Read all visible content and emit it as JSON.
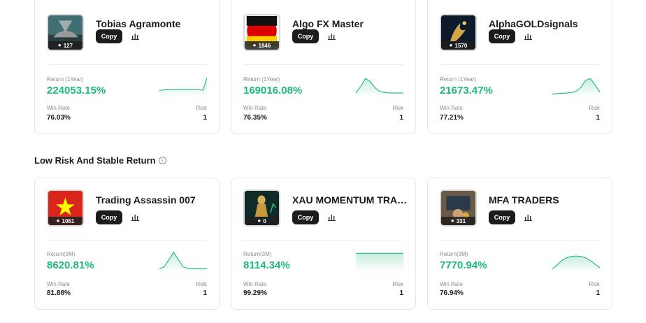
{
  "colors": {
    "accent_green": "#1fb977",
    "button_dark": "#1c1c1c"
  },
  "section": {
    "title": "Low Risk And Stable Return",
    "info_icon": "info-icon"
  },
  "top_cards": [
    {
      "name": "Tobias Agramonte",
      "followers": "127",
      "copy_label": "Copy",
      "return_label": "Return (1Year)",
      "return_value": "224053.15%",
      "winrate_label": "Win Rate",
      "winrate_value": "76.03%",
      "risk_label": "Risk",
      "risk_value": "1",
      "avatar": "car-photo",
      "spark": [
        0.3,
        0.32,
        0.34,
        0.33,
        0.35,
        0.34,
        0.36,
        0.35,
        0.34,
        0.36,
        0.35,
        0.3,
        1.0
      ]
    },
    {
      "name": "Algo FX Master",
      "followers": "1846",
      "copy_label": "Copy",
      "return_label": "Return (1Year)",
      "return_value": "169016.08%",
      "winrate_label": "Win Rate",
      "winrate_value": "76.35%",
      "risk_label": "Risk",
      "risk_value": "1",
      "avatar": "germany-flag",
      "spark": [
        0.15,
        0.5,
        0.95,
        0.8,
        0.45,
        0.25,
        0.18,
        0.16,
        0.15,
        0.15,
        0.15
      ]
    },
    {
      "name": "AlphaGOLDsignals",
      "followers": "1570",
      "copy_label": "Copy",
      "return_label": "Return (1Year)",
      "return_value": "21673.47%",
      "winrate_label": "Win Rate",
      "winrate_value": "77.21%",
      "risk_label": "Risk",
      "risk_value": "1",
      "avatar": "gold-bull",
      "spark": [
        0.1,
        0.12,
        0.14,
        0.15,
        0.18,
        0.25,
        0.45,
        0.85,
        0.95,
        0.6,
        0.2
      ]
    }
  ],
  "bottom_cards": [
    {
      "name": "Trading Assassin 007",
      "followers": "1061",
      "copy_label": "Copy",
      "return_label": "Return(3M)",
      "return_value": "8620.81%",
      "winrate_label": "Win Rate",
      "winrate_value": "81.88%",
      "risk_label": "Risk",
      "risk_value": "1",
      "avatar": "vietnam-flag",
      "spark": [
        0.1,
        0.2,
        0.6,
        1.0,
        0.6,
        0.2,
        0.12,
        0.1,
        0.1,
        0.1,
        0.1
      ]
    },
    {
      "name": "XAU MOMENTUM TRADI...",
      "followers": "0",
      "copy_label": "Copy",
      "return_label": "Return(3M)",
      "return_value": "8114.34%",
      "winrate_label": "Win Rate",
      "winrate_value": "99.29%",
      "risk_label": "Risk",
      "risk_value": "1",
      "avatar": "gold-statue",
      "spark": [
        0.95,
        0.95,
        0.95,
        0.95,
        0.95,
        0.95,
        0.95,
        0.95,
        0.95,
        0.95,
        0.95
      ]
    },
    {
      "name": "MFA TRADERS",
      "followers": "331",
      "copy_label": "Copy",
      "return_label": "Return(3M)",
      "return_value": "7770.94%",
      "winrate_label": "Win Rate",
      "winrate_value": "76.94%",
      "risk_label": "Risk",
      "risk_value": "1",
      "avatar": "trader-photo",
      "spark": [
        0.1,
        0.3,
        0.55,
        0.7,
        0.78,
        0.8,
        0.78,
        0.7,
        0.55,
        0.35,
        0.15
      ]
    }
  ]
}
